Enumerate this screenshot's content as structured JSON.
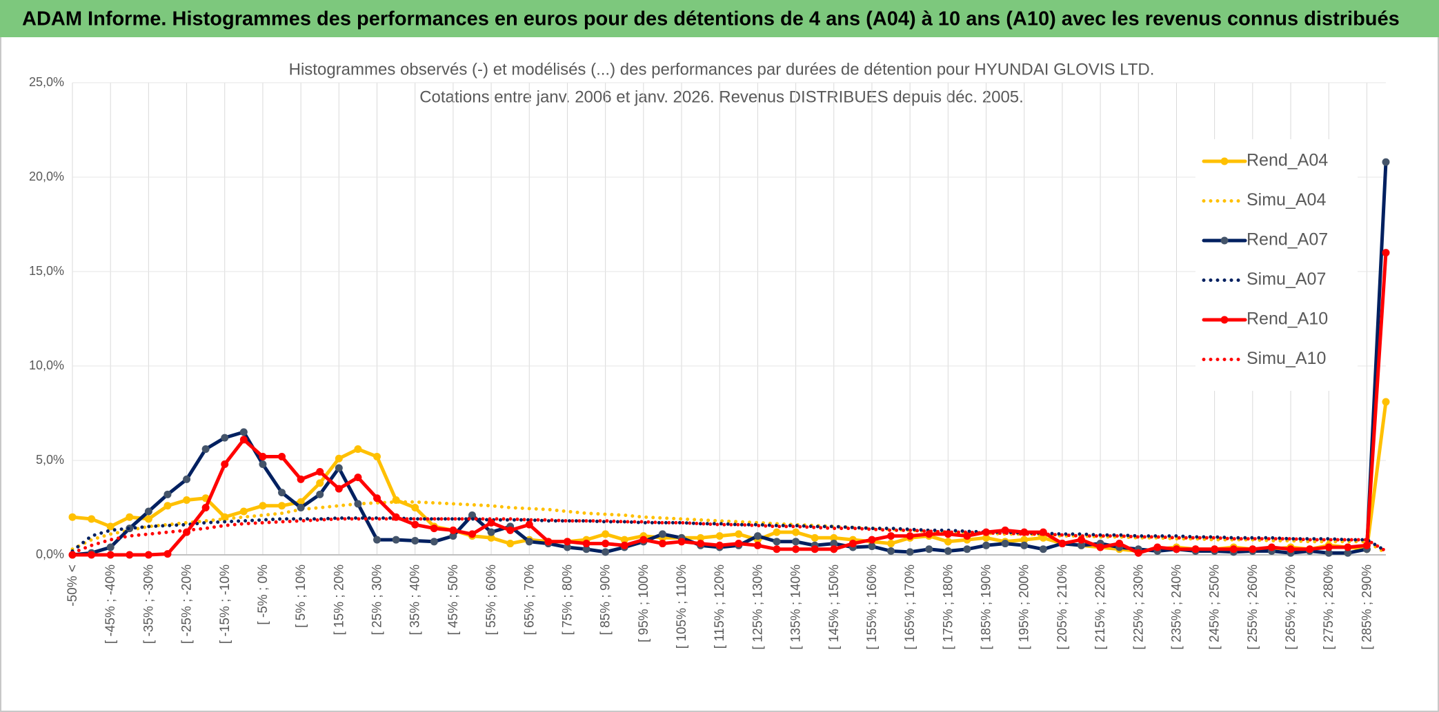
{
  "header": {
    "title": "ADAM Informe. Histogrammes des performances en euros pour des détentions de 4 ans (A04) à 10 ans (A10) avec les revenus connus distribués"
  },
  "chart_data": {
    "type": "line",
    "title": "Histogrammes observés (-) et modélisés (...) des performances par durées de détention pour HYUNDAI GLOVIS LTD.",
    "subtitle": "Cotations entre janv. 2006 et janv. 2026. Revenus DISTRIBUES depuis déc. 2005.",
    "categories": [
      "-50% <",
      null,
      "[ -45% ; -40%",
      null,
      "[ -35% ; -30%",
      null,
      "[ -25% ; -20%",
      null,
      "[ -15% ; -10%",
      null,
      "[ -5% ; 0%",
      null,
      "[ 5% ; 10%",
      null,
      "[ 15% ; 20%",
      null,
      "[ 25% ; 30%",
      null,
      "[ 35% ; 40%",
      null,
      "[ 45% ; 50%",
      null,
      "[ 55% ; 60%",
      null,
      "[ 65% ; 70%",
      null,
      "[ 75% ; 80%",
      null,
      "[ 85% ; 90%",
      null,
      "[ 95% ; 100%",
      null,
      "[ 105% ; 110%",
      null,
      "[ 115% ; 120%",
      null,
      "[ 125% ; 130%",
      null,
      "[ 135% ; 140%",
      null,
      "[ 145% ; 150%",
      null,
      "[ 155% ; 160%",
      null,
      "[ 165% ; 170%",
      null,
      "[ 175% ; 180%",
      null,
      "[ 185% ; 190%",
      null,
      "[ 195% ; 200%",
      null,
      "[ 205% ; 210%",
      null,
      "[ 215% ; 220%",
      null,
      "[ 225% ; 230%",
      null,
      "[ 235% ; 240%",
      null,
      "[ 245% ; 250%",
      null,
      "[ 255% ; 260%",
      null,
      "[ 265% ; 270%",
      null,
      "[ 275% ; 280%",
      null,
      "[ 285% ; 290%",
      null
    ],
    "series": [
      {
        "name": "Rend_A04",
        "color": "#ffc000",
        "line_style": "solid",
        "markers": true,
        "values": [
          2.0,
          1.9,
          1.5,
          2.0,
          1.9,
          2.6,
          2.9,
          3.0,
          2.0,
          2.3,
          2.6,
          2.6,
          2.8,
          3.8,
          5.1,
          5.6,
          5.2,
          2.9,
          2.5,
          1.5,
          1.3,
          1.0,
          0.9,
          0.6,
          0.8,
          0.7,
          0.7,
          0.8,
          1.1,
          0.8,
          1.0,
          0.9,
          0.9,
          0.9,
          1.0,
          1.1,
          0.8,
          1.2,
          1.2,
          0.9,
          0.9,
          0.8,
          0.7,
          0.6,
          0.9,
          1.0,
          0.7,
          0.8,
          0.9,
          0.7,
          0.8,
          0.9,
          0.6,
          0.5,
          0.4,
          0.3,
          0.2,
          0.3,
          0.4,
          0.3,
          0.3,
          0.4,
          0.3,
          0.3,
          0.4,
          0.3,
          0.5,
          0.4,
          0.3,
          8.1
        ]
      },
      {
        "name": "Simu_A04",
        "color": "#ffc000",
        "line_style": "dotted",
        "markers": false,
        "values": [
          0.3,
          0.8,
          1.1,
          1.3,
          1.5,
          1.6,
          1.7,
          1.8,
          1.9,
          2.0,
          2.1,
          2.2,
          2.4,
          2.5,
          2.6,
          2.7,
          2.75,
          2.8,
          2.8,
          2.75,
          2.7,
          2.65,
          2.6,
          2.5,
          2.45,
          2.4,
          2.3,
          2.2,
          2.15,
          2.1,
          2.0,
          1.95,
          1.9,
          1.85,
          1.8,
          1.75,
          1.7,
          1.65,
          1.6,
          1.55,
          1.5,
          1.45,
          1.4,
          1.35,
          1.3,
          1.25,
          1.2,
          1.2,
          1.15,
          1.1,
          1.1,
          1.05,
          1.0,
          1.0,
          0.95,
          0.95,
          0.9,
          0.9,
          0.85,
          0.85,
          0.8,
          0.8,
          0.8,
          0.75,
          0.75,
          0.7,
          0.7,
          0.7,
          0.7,
          0.1
        ]
      },
      {
        "name": "Rend_A07",
        "color": "#002060",
        "line_style": "solid",
        "markers": true,
        "values": [
          0,
          0.1,
          0.4,
          1.4,
          2.3,
          3.2,
          4.0,
          5.6,
          6.2,
          6.5,
          4.8,
          3.3,
          2.5,
          3.2,
          4.6,
          2.7,
          0.8,
          0.8,
          0.75,
          0.7,
          1.0,
          2.1,
          1.2,
          1.5,
          0.7,
          0.6,
          0.4,
          0.3,
          0.15,
          0.4,
          0.7,
          1.1,
          0.9,
          0.5,
          0.4,
          0.5,
          1.0,
          0.7,
          0.7,
          0.5,
          0.6,
          0.4,
          0.45,
          0.2,
          0.15,
          0.3,
          0.2,
          0.3,
          0.5,
          0.6,
          0.5,
          0.3,
          0.6,
          0.5,
          0.6,
          0.4,
          0.3,
          0.2,
          0.3,
          0.2,
          0.2,
          0.15,
          0.2,
          0.2,
          0.1,
          0.2,
          0.1,
          0.1,
          0.3,
          20.8
        ]
      },
      {
        "name": "Simu_A07",
        "color": "#002060",
        "line_style": "dotted",
        "markers": false,
        "values": [
          0.2,
          1.0,
          1.3,
          1.4,
          1.5,
          1.55,
          1.6,
          1.7,
          1.75,
          1.8,
          1.85,
          1.9,
          1.9,
          1.9,
          1.95,
          1.95,
          1.95,
          1.95,
          1.9,
          1.9,
          1.9,
          1.9,
          1.85,
          1.85,
          1.85,
          1.8,
          1.8,
          1.8,
          1.75,
          1.75,
          1.7,
          1.7,
          1.7,
          1.65,
          1.65,
          1.6,
          1.6,
          1.55,
          1.55,
          1.5,
          1.5,
          1.45,
          1.4,
          1.4,
          1.35,
          1.3,
          1.3,
          1.25,
          1.2,
          1.2,
          1.15,
          1.15,
          1.1,
          1.1,
          1.05,
          1.05,
          1.0,
          1.0,
          1.0,
          0.95,
          0.95,
          0.9,
          0.9,
          0.9,
          0.85,
          0.85,
          0.85,
          0.8,
          0.8,
          0.2
        ]
      },
      {
        "name": "Rend_A10",
        "color": "#ff0000",
        "line_style": "solid",
        "markers": true,
        "values": [
          0,
          0,
          0,
          0,
          0,
          0.05,
          1.2,
          2.5,
          4.8,
          6.1,
          5.2,
          5.2,
          4.0,
          4.4,
          3.5,
          4.1,
          3.0,
          2.0,
          1.6,
          1.4,
          1.3,
          1.1,
          1.7,
          1.3,
          1.6,
          0.7,
          0.7,
          0.6,
          0.6,
          0.5,
          0.8,
          0.6,
          0.7,
          0.6,
          0.5,
          0.6,
          0.5,
          0.3,
          0.3,
          0.3,
          0.3,
          0.6,
          0.8,
          1.0,
          1.0,
          1.1,
          1.1,
          1.0,
          1.2,
          1.3,
          1.2,
          1.2,
          0.6,
          0.8,
          0.4,
          0.6,
          0.1,
          0.4,
          0.3,
          0.3,
          0.3,
          0.3,
          0.3,
          0.4,
          0.3,
          0.3,
          0.4,
          0.4,
          0.5,
          16.0
        ]
      },
      {
        "name": "Simu_A10",
        "color": "#ff0000",
        "line_style": "dotted",
        "markers": false,
        "values": [
          0.1,
          0.5,
          0.8,
          1.0,
          1.1,
          1.2,
          1.3,
          1.4,
          1.55,
          1.65,
          1.7,
          1.75,
          1.8,
          1.85,
          1.9,
          1.9,
          1.9,
          1.9,
          1.9,
          1.9,
          1.9,
          1.9,
          1.9,
          1.9,
          1.85,
          1.85,
          1.8,
          1.8,
          1.8,
          1.75,
          1.75,
          1.7,
          1.7,
          1.65,
          1.6,
          1.6,
          1.55,
          1.5,
          1.5,
          1.45,
          1.4,
          1.4,
          1.35,
          1.3,
          1.3,
          1.25,
          1.2,
          1.2,
          1.15,
          1.15,
          1.1,
          1.1,
          1.05,
          1.0,
          1.0,
          1.0,
          0.95,
          0.95,
          0.9,
          0.9,
          0.9,
          0.85,
          0.85,
          0.85,
          0.85,
          0.8,
          0.8,
          0.8,
          0.8,
          0.2
        ]
      }
    ],
    "ylim": [
      0,
      25
    ],
    "yticks": [
      {
        "value": 0,
        "label": "0,0%"
      },
      {
        "value": 5,
        "label": "5,0%"
      },
      {
        "value": 10,
        "label": "10,0%"
      },
      {
        "value": 15,
        "label": "15,0%"
      },
      {
        "value": 20,
        "label": "20,0%"
      },
      {
        "value": 25,
        "label": "25,0%"
      }
    ],
    "grid": true,
    "legend": "right"
  }
}
